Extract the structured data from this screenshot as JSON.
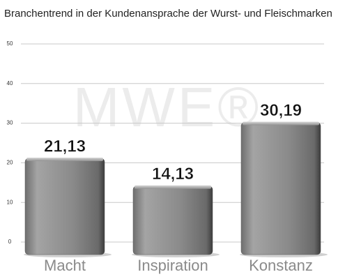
{
  "chart_data": {
    "type": "bar",
    "title": "Branchentrend in der Kundenansprache der Wurst- und Fleischmarken",
    "watermark": "MWE®",
    "categories": [
      "Macht",
      "Inspiration",
      "Konstanz"
    ],
    "values": [
      21.13,
      14.13,
      30.19
    ],
    "value_labels": [
      "21,13",
      "14,13",
      "30,19"
    ],
    "color": "#8c8c8c",
    "ylim": [
      0,
      50
    ],
    "yticks": [
      0,
      10,
      20,
      30,
      40,
      50
    ],
    "grid": true
  }
}
